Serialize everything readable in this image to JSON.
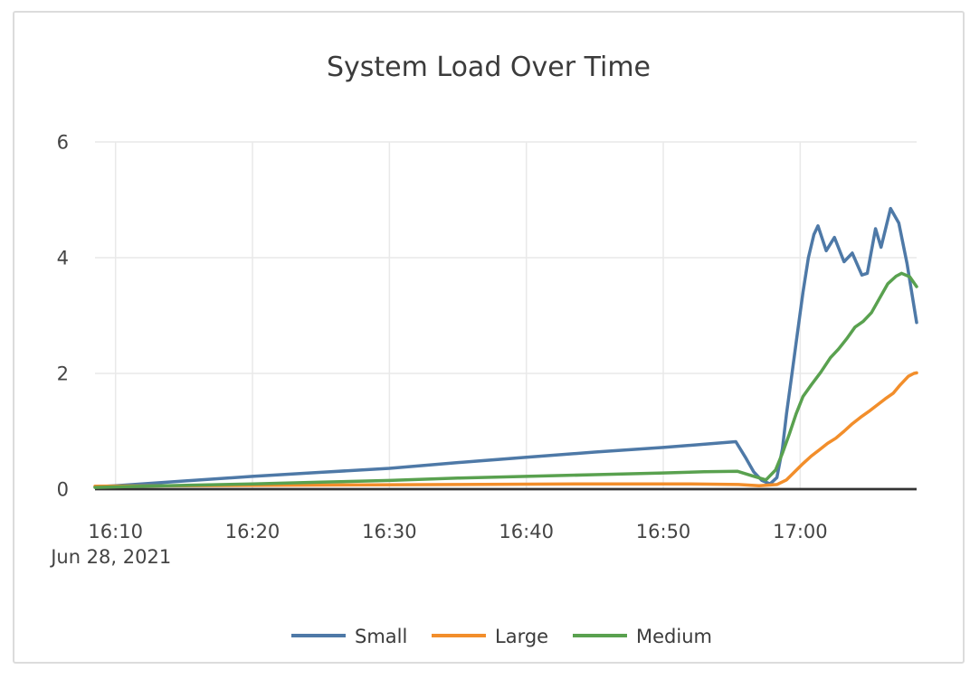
{
  "chart_data": {
    "type": "line",
    "title": "System Load Over Time",
    "grid": true,
    "legend_position": "bottom",
    "x_axis": {
      "date_label": "Jun 28, 2021",
      "tick_labels": [
        "16:10",
        "16:20",
        "16:30",
        "16:40",
        "16:50",
        "17:00"
      ],
      "tick_minutes": [
        10,
        20,
        30,
        40,
        50,
        60
      ],
      "domain_minutes": [
        8.5,
        68.5
      ]
    },
    "y_axis": {
      "tick_labels": [
        "0",
        "2",
        "4",
        "6"
      ],
      "tick_values": [
        0,
        2,
        4,
        6
      ],
      "range": [
        0,
        6
      ]
    },
    "series": [
      {
        "name": "Small",
        "color": "#4e79a7",
        "points": [
          [
            8.5,
            0.04
          ],
          [
            10,
            0.06
          ],
          [
            15,
            0.14
          ],
          [
            20,
            0.22
          ],
          [
            25,
            0.29
          ],
          [
            30,
            0.36
          ],
          [
            35,
            0.46
          ],
          [
            40,
            0.55
          ],
          [
            45,
            0.64
          ],
          [
            50,
            0.72
          ],
          [
            55.3,
            0.82
          ],
          [
            56,
            0.55
          ],
          [
            56.6,
            0.3
          ],
          [
            57.2,
            0.15
          ],
          [
            57.8,
            0.09
          ],
          [
            58.3,
            0.2
          ],
          [
            58.7,
            0.7
          ],
          [
            59.0,
            1.3
          ],
          [
            59.4,
            2.0
          ],
          [
            59.8,
            2.7
          ],
          [
            60.2,
            3.4
          ],
          [
            60.6,
            4.0
          ],
          [
            61.0,
            4.4
          ],
          [
            61.3,
            4.55
          ],
          [
            61.9,
            4.12
          ],
          [
            62.5,
            4.35
          ],
          [
            63.2,
            3.93
          ],
          [
            63.8,
            4.08
          ],
          [
            64.5,
            3.7
          ],
          [
            64.9,
            3.73
          ],
          [
            65.5,
            4.5
          ],
          [
            65.9,
            4.18
          ],
          [
            66.6,
            4.85
          ],
          [
            67.2,
            4.6
          ],
          [
            67.8,
            3.9
          ],
          [
            68.5,
            2.88
          ]
        ]
      },
      {
        "name": "Large",
        "color": "#f28e2b",
        "points": [
          [
            8.5,
            0.05
          ],
          [
            15,
            0.06
          ],
          [
            25,
            0.07
          ],
          [
            35,
            0.08
          ],
          [
            45,
            0.09
          ],
          [
            52,
            0.09
          ],
          [
            55.5,
            0.08
          ],
          [
            57,
            0.06
          ],
          [
            58.3,
            0.08
          ],
          [
            59.0,
            0.16
          ],
          [
            59.6,
            0.3
          ],
          [
            60.2,
            0.44
          ],
          [
            60.8,
            0.57
          ],
          [
            61.4,
            0.68
          ],
          [
            62.0,
            0.79
          ],
          [
            62.6,
            0.88
          ],
          [
            63.2,
            1.0
          ],
          [
            63.8,
            1.13
          ],
          [
            64.4,
            1.24
          ],
          [
            65.0,
            1.34
          ],
          [
            65.6,
            1.45
          ],
          [
            66.2,
            1.56
          ],
          [
            66.8,
            1.66
          ],
          [
            67.3,
            1.8
          ],
          [
            67.9,
            1.95
          ],
          [
            68.3,
            2.0
          ],
          [
            68.5,
            2.01
          ]
        ]
      },
      {
        "name": "Medium",
        "color": "#59a14f",
        "points": [
          [
            8.5,
            0.03
          ],
          [
            12,
            0.05
          ],
          [
            16,
            0.07
          ],
          [
            20,
            0.09
          ],
          [
            25,
            0.12
          ],
          [
            30,
            0.15
          ],
          [
            35,
            0.19
          ],
          [
            40,
            0.22
          ],
          [
            45,
            0.25
          ],
          [
            50,
            0.28
          ],
          [
            53,
            0.3
          ],
          [
            55.4,
            0.31
          ],
          [
            56.5,
            0.23
          ],
          [
            57.5,
            0.16
          ],
          [
            58.2,
            0.33
          ],
          [
            58.7,
            0.62
          ],
          [
            59.2,
            0.95
          ],
          [
            59.7,
            1.3
          ],
          [
            60.2,
            1.6
          ],
          [
            60.8,
            1.8
          ],
          [
            61.5,
            2.02
          ],
          [
            62.2,
            2.27
          ],
          [
            62.8,
            2.42
          ],
          [
            63.4,
            2.6
          ],
          [
            64.0,
            2.8
          ],
          [
            64.6,
            2.9
          ],
          [
            65.2,
            3.05
          ],
          [
            65.8,
            3.3
          ],
          [
            66.4,
            3.55
          ],
          [
            67.0,
            3.68
          ],
          [
            67.4,
            3.73
          ],
          [
            68.0,
            3.67
          ],
          [
            68.5,
            3.5
          ]
        ]
      }
    ]
  }
}
